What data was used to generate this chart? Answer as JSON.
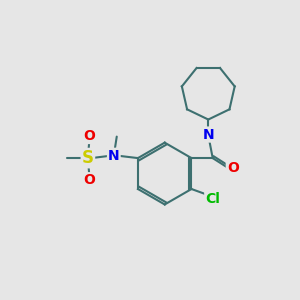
{
  "background_color": "#e6e6e6",
  "bond_color": "#3d7070",
  "atom_colors": {
    "N": "#0000ee",
    "O": "#ee0000",
    "S": "#cccc00",
    "Cl": "#00bb00",
    "C": "#333333"
  },
  "bond_lw": 1.5,
  "font_size": 10
}
